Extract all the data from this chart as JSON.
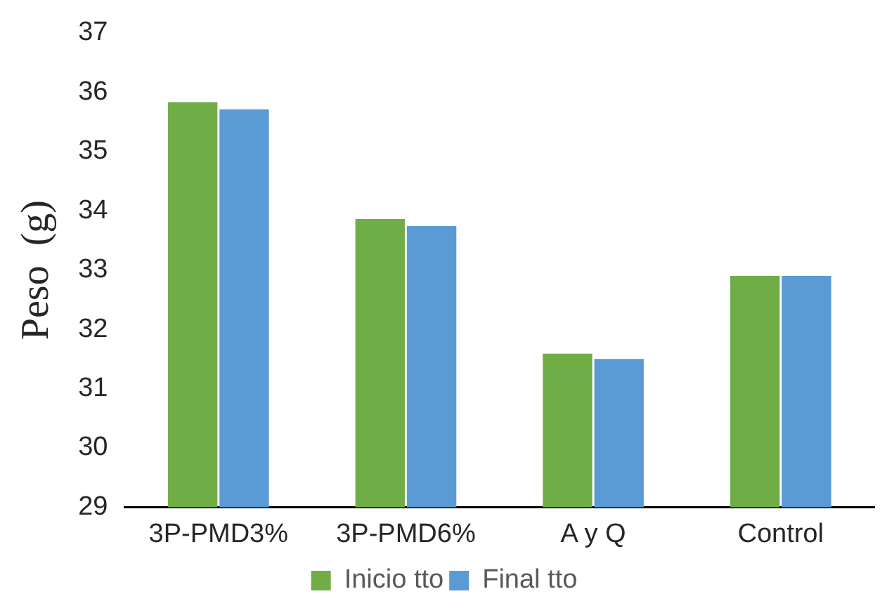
{
  "chart_data": {
    "type": "bar",
    "ylabel": "Peso  (g)",
    "categories": [
      "3P-PMD3%",
      "3P-PMD6%",
      "A y Q",
      "Control"
    ],
    "series": [
      {
        "name": "Inicio tto",
        "color": "#70ad47",
        "values": [
          35.83,
          33.86,
          31.59,
          32.9
        ]
      },
      {
        "name": "Final tto",
        "color": "#5b9bd5",
        "values": [
          35.71,
          33.74,
          31.5,
          32.9
        ]
      }
    ],
    "ylim": [
      29,
      37
    ],
    "yticks": [
      29,
      30,
      31,
      32,
      33,
      34,
      35,
      36,
      37
    ],
    "grid": false,
    "legend": "bottom"
  }
}
